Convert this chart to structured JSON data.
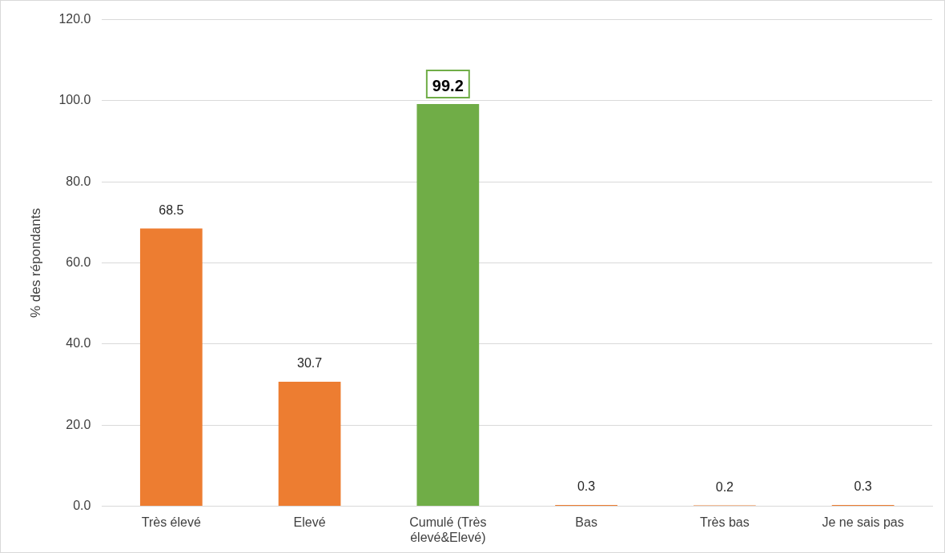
{
  "chart_data": {
    "type": "bar",
    "ylabel": "% des répondants",
    "categories": [
      "Très élevé",
      "Elevé",
      "Cumulé (Très élevé&Elevé)",
      "Bas",
      "Très bas",
      "Je ne sais pas"
    ],
    "values": [
      68.5,
      30.7,
      99.2,
      0.3,
      0.2,
      0.3
    ],
    "colors": [
      "#ed7d31",
      "#ed7d31",
      "#70ad47",
      "#ed7d31",
      "#ed7d31",
      "#ed7d31"
    ],
    "value_labels": [
      "68.5",
      "30.7",
      "99.2",
      "0.3",
      "0.2",
      "0.3"
    ],
    "ylim": [
      0,
      120
    ],
    "yticks": [
      {
        "value": 0,
        "label": "0.0"
      },
      {
        "value": 20,
        "label": "20.0"
      },
      {
        "value": 40,
        "label": "40.0"
      },
      {
        "value": 60,
        "label": "60.0"
      },
      {
        "value": 80,
        "label": "80.0"
      },
      {
        "value": 100,
        "label": "100.0"
      },
      {
        "value": 120,
        "label": "120.0"
      }
    ],
    "grid": "y",
    "legend": false
  }
}
